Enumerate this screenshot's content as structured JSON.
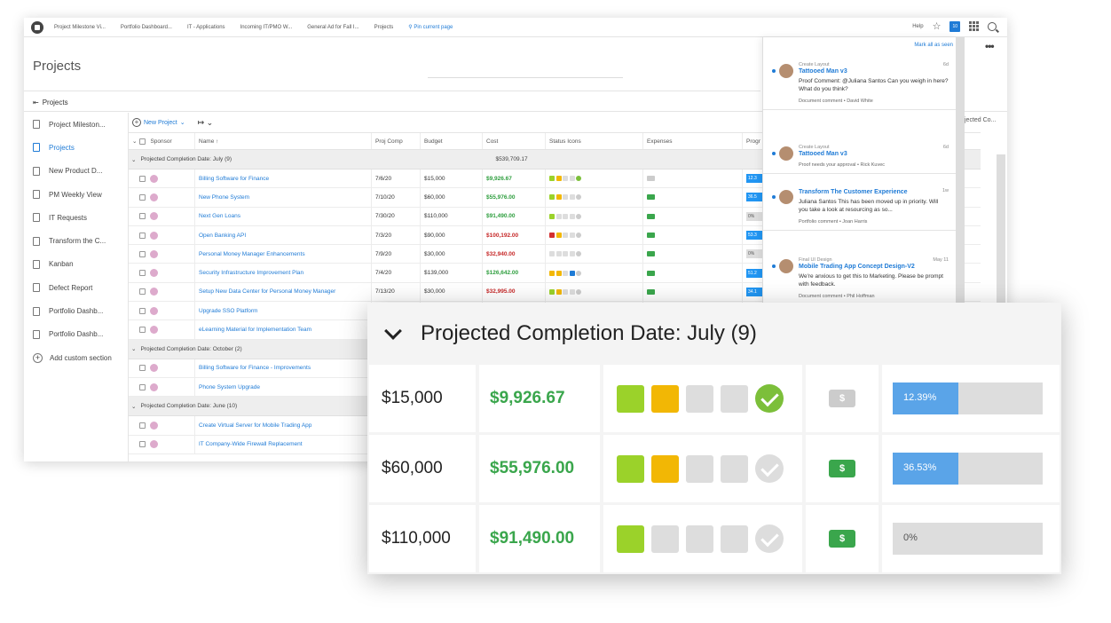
{
  "topbar": {
    "tabs": [
      "Project Milestone Vi...",
      "Portfolio Dashboard...",
      "IT - Applications",
      "Incoming IT/PMO W...",
      "General Ad for Fall I...",
      "Projects"
    ],
    "pin_label": "Pin current page",
    "help": "Help",
    "badge": "10"
  },
  "page": {
    "title": "Projects",
    "breadcrumb": "Projects"
  },
  "sidebar": {
    "items": [
      {
        "label": "Project Mileston..."
      },
      {
        "label": "Projects"
      },
      {
        "label": "New Product D..."
      },
      {
        "label": "PM Weekly View"
      },
      {
        "label": "IT Requests"
      },
      {
        "label": "Transform the C..."
      },
      {
        "label": "Kanban"
      },
      {
        "label": "Defect Report"
      },
      {
        "label": "Portfolio Dashb..."
      },
      {
        "label": "Portfolio Dashb..."
      }
    ],
    "add_label": "Add custom section"
  },
  "toolbar": {
    "new_project": "New Project"
  },
  "table": {
    "headers": [
      "Sponsor",
      "Name ↑",
      "Proj Comp",
      "Budget",
      "Cost",
      "Status Icons",
      "Expenses",
      "Progr"
    ],
    "groups": [
      {
        "label": "Projected Completion Date: July (9)",
        "total": "$539,709.17"
      },
      {
        "label": "Projected Completion Date: October (2)"
      },
      {
        "label": "Projected Completion Date: June (10)"
      }
    ],
    "july_rows": [
      {
        "name": "Billing Software for Finance",
        "date": "7/6/20",
        "budget": "$15,000",
        "cost": "$9,926.67",
        "cost_color": "green",
        "progress": "12.3"
      },
      {
        "name": "New Phone System",
        "date": "7/10/20",
        "budget": "$60,000",
        "cost": "$55,976.00",
        "cost_color": "green",
        "progress": "36.5"
      },
      {
        "name": "Next Gen Loans",
        "date": "7/30/20",
        "budget": "$110,000",
        "cost": "$91,490.00",
        "cost_color": "green",
        "progress": "0%"
      },
      {
        "name": "Open Banking API",
        "date": "7/3/20",
        "budget": "$90,000",
        "cost": "$100,192.00",
        "cost_color": "red",
        "progress": "53.3"
      },
      {
        "name": "Personal Money Manager Enhancements",
        "date": "7/9/20",
        "budget": "$30,000",
        "cost": "$32,940.00",
        "cost_color": "red",
        "progress": "0%"
      },
      {
        "name": "Security Infrastructure Improvement Plan",
        "date": "7/4/20",
        "budget": "$139,000",
        "cost": "$126,642.00",
        "cost_color": "green",
        "progress": "51.2"
      },
      {
        "name": "Setup New Data Center for Personal Money Manager",
        "date": "7/13/20",
        "budget": "$30,000",
        "cost": "$32,995.00",
        "cost_color": "red",
        "progress": "34.1"
      },
      {
        "name": "Upgrade SSO Platform"
      },
      {
        "name": "eLearning Material for Implementation Team"
      }
    ],
    "october_rows": [
      {
        "name": "Billing Software for Finance - Improvements"
      },
      {
        "name": "Phone System Upgrade"
      }
    ],
    "june_rows": [
      {
        "name": "Create Virtual Server for Mobile Trading App"
      },
      {
        "name": "IT Company-Wide Firewall Replacement"
      }
    ]
  },
  "right_col_text": "jected Co...",
  "notifications": {
    "mark_all": "Mark all as seen",
    "items": [
      {
        "type": "Create Layout",
        "title": "Tattooed Man v3",
        "body": "Proof Comment: @Juliana Santos Can you weigh in here? What do you think?",
        "footer": "Document comment  •  David White",
        "age": "6d"
      },
      {
        "type": "Create Layout",
        "title": "Tattooed Man v3",
        "body": "",
        "footer": "Proof needs your approval  •  Rick Kuvec",
        "age": "6d"
      },
      {
        "type": "",
        "title": "Transform The Customer Experience",
        "body": "Juliana Santos This has been moved up in priority. Will you take a look at resourcing as so...",
        "footer": "Portfolio comment  •  Joan Harris",
        "age": "1w"
      },
      {
        "type": "Final UI Design",
        "title": "Mobile Trading App Concept Design-V2",
        "body": "We're anxious to get this to Marketing. Please be prompt with feedback.",
        "footer": "Document comment  •  Phil Hoffman",
        "age": "May 11"
      }
    ]
  },
  "zoom": {
    "title": "Projected Completion Date: July (9)",
    "rows": [
      {
        "budget": "$15,000",
        "cost": "$9,926.67",
        "progress_label": "12.39%",
        "progress": 0.1239,
        "squares": [
          "g",
          "y",
          "n",
          "n"
        ],
        "check_ok": true,
        "dollar_grey": true
      },
      {
        "budget": "$60,000",
        "cost": "$55,976.00",
        "progress_label": "36.53%",
        "progress": 0.3653,
        "squares": [
          "g",
          "y",
          "n",
          "n"
        ],
        "check_ok": false,
        "dollar_grey": false
      },
      {
        "budget": "$110,000",
        "cost": "$91,490.00",
        "progress_label": "0%",
        "progress": 0,
        "squares": [
          "g",
          "n",
          "n",
          "n"
        ],
        "check_ok": false,
        "dollar_grey": false
      }
    ],
    "dollar": "$"
  }
}
